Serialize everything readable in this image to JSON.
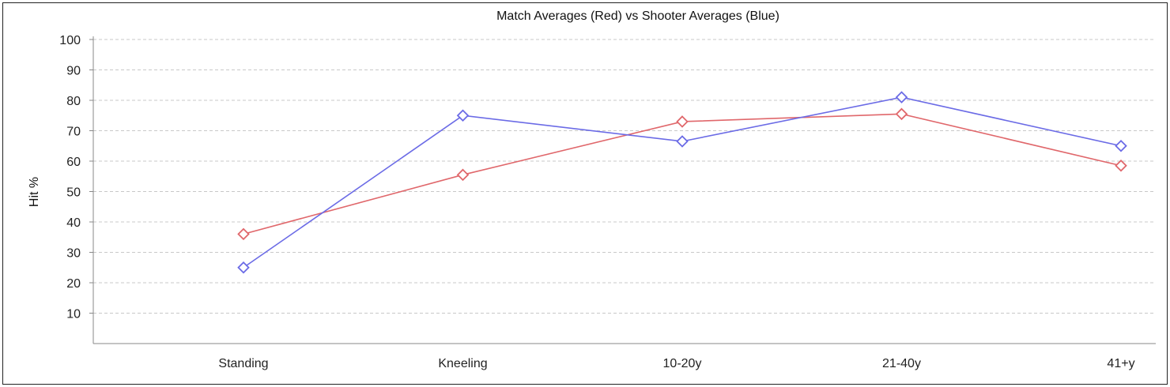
{
  "chart_data": {
    "type": "line",
    "title": "Match Averages (Red) vs Shooter Averages (Blue)",
    "xlabel": "",
    "ylabel": "Hit %",
    "categories": [
      "Standing",
      "Kneeling",
      "10-20y",
      "21-40y",
      "41+y"
    ],
    "ylim": [
      0,
      100
    ],
    "yticks": [
      10,
      20,
      30,
      40,
      50,
      60,
      70,
      80,
      90,
      100
    ],
    "grid": true,
    "series": [
      {
        "key": "match",
        "color": "#e0676b",
        "values": [
          36,
          55.5,
          73,
          75.5,
          58.5
        ]
      },
      {
        "key": "shooter",
        "color": "#6b6be6",
        "values": [
          25,
          75,
          66.5,
          81,
          65
        ]
      }
    ]
  }
}
